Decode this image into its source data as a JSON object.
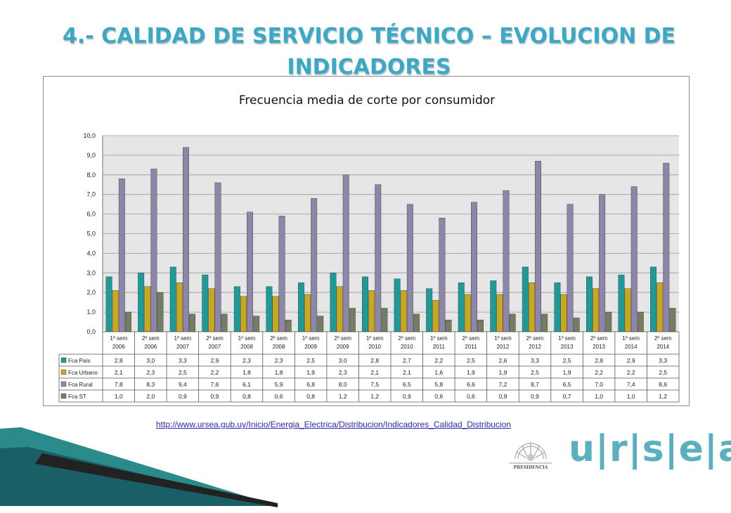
{
  "slide": {
    "title": "4.- CALIDAD DE SERVICIO TÉCNICO – EVOLUCION DE INDICADORES",
    "source_url": "http://www.ursea.gub.uy/Inicio/Energia_Electrica/Distribucion/Indicadores_Calidad_Distribucion",
    "logo_presidencia": "PRESIDENCIA",
    "logo_ursea": "u|r|s|e|a"
  },
  "chart_data": {
    "type": "bar",
    "title": "Frecuencia media de corte por consumidor",
    "ylim": [
      0,
      10
    ],
    "y_ticks": [
      "0,0",
      "1,0",
      "2,0",
      "3,0",
      "4,0",
      "5,0",
      "6,0",
      "7,0",
      "8,0",
      "9,0",
      "10,0"
    ],
    "categories": [
      [
        "1º sem",
        "2006"
      ],
      [
        "2º sem",
        "2006"
      ],
      [
        "1º sem",
        "2007"
      ],
      [
        "2º sem",
        "2007"
      ],
      [
        "1º sem",
        "2008"
      ],
      [
        "2º sem",
        "2008"
      ],
      [
        "1º sem",
        "2009"
      ],
      [
        "2º sem",
        "2009"
      ],
      [
        "1º sem",
        "2010"
      ],
      [
        "2º sem",
        "2010"
      ],
      [
        "1º sem",
        "2011"
      ],
      [
        "2º sem",
        "2011"
      ],
      [
        "1º sem",
        "2012"
      ],
      [
        "2º sem",
        "2012"
      ],
      [
        "1º sem",
        "2013"
      ],
      [
        "2º sem",
        "2013"
      ],
      [
        "1º sem",
        "2014"
      ],
      [
        "2º sem",
        "2014"
      ]
    ],
    "series": [
      {
        "name": "Fca País",
        "color": "#1d9a9a",
        "values": [
          2.8,
          3.0,
          3.3,
          2.9,
          2.3,
          2.3,
          2.5,
          3.0,
          2.8,
          2.7,
          2.2,
          2.5,
          2.6,
          3.3,
          2.5,
          2.8,
          2.9,
          3.3
        ],
        "labels": [
          "2,8",
          "3,0",
          "3,3",
          "2,9",
          "2,3",
          "2,3",
          "2,5",
          "3,0",
          "2,8",
          "2,7",
          "2,2",
          "2,5",
          "2,6",
          "3,3",
          "2,5",
          "2,8",
          "2,9",
          "3,3"
        ]
      },
      {
        "name": "Fca Urbano",
        "color": "#c8a81e",
        "values": [
          2.1,
          2.3,
          2.5,
          2.2,
          1.8,
          1.8,
          1.9,
          2.3,
          2.1,
          2.1,
          1.6,
          1.9,
          1.9,
          2.5,
          1.9,
          2.2,
          2.2,
          2.5
        ],
        "labels": [
          "2,1",
          "2,3",
          "2,5",
          "2,2",
          "1,8",
          "1,8",
          "1,9",
          "2,3",
          "2,1",
          "2,1",
          "1,6",
          "1,9",
          "1,9",
          "2,5",
          "1,9",
          "2,2",
          "2,2",
          "2,5"
        ]
      },
      {
        "name": "Fca Rural",
        "color": "#8e86a8",
        "values": [
          7.8,
          8.3,
          9.4,
          7.6,
          6.1,
          5.9,
          6.8,
          8.0,
          7.5,
          6.5,
          5.8,
          6.6,
          7.2,
          8.7,
          6.5,
          7.0,
          7.4,
          8.6
        ],
        "labels": [
          "7,8",
          "8,3",
          "9,4",
          "7,6",
          "6,1",
          "5,9",
          "6,8",
          "8,0",
          "7,5",
          "6,5",
          "5,8",
          "6,6",
          "7,2",
          "8,7",
          "6,5",
          "7,0",
          "7,4",
          "8,6"
        ]
      },
      {
        "name": "Fca ST",
        "color": "#6f7f5f",
        "values": [
          1.0,
          2.0,
          0.9,
          0.9,
          0.8,
          0.6,
          0.8,
          1.2,
          1.2,
          0.9,
          0.6,
          0.6,
          0.9,
          0.9,
          0.7,
          1.0,
          1.0,
          1.2
        ],
        "labels": [
          "1,0",
          "2,0",
          "0,9",
          "0,9",
          "0,8",
          "0,6",
          "0,8",
          "1,2",
          "1,2",
          "0,9",
          "0,6",
          "0,6",
          "0,9",
          "0,9",
          "0,7",
          "1,0",
          "1,0",
          "1,2"
        ]
      }
    ],
    "grid": true,
    "legend": "data-table"
  }
}
